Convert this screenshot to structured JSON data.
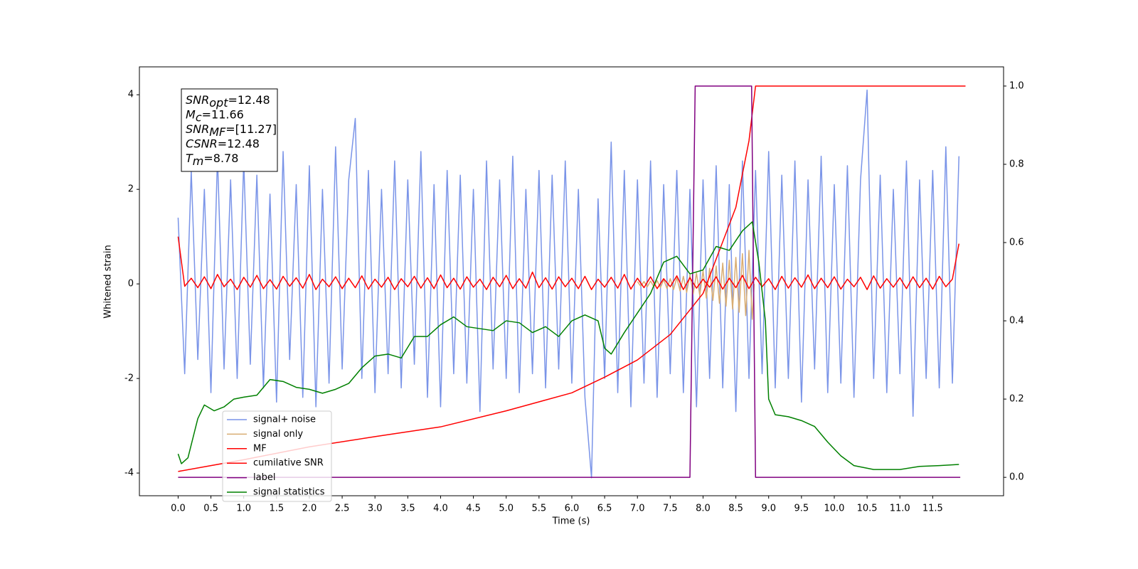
{
  "chart_data": {
    "type": "line",
    "xlabel": "Time (s)",
    "ylabel": "Whitened strain",
    "xlim": [
      -0.59,
      12.58
    ],
    "ylim": [
      -4.48,
      4.59
    ],
    "y2lim": [
      -0.047,
      1.049
    ],
    "xticks": [
      {
        "value": 0,
        "label": "0.0"
      },
      0.5,
      {
        "value": 1,
        "label": "1.0"
      },
      1.5,
      {
        "value": 2,
        "label": "2.0"
      },
      2.5,
      {
        "value": 3,
        "label": "3.0"
      },
      3.5,
      {
        "value": 4,
        "label": "4.0"
      },
      4.5,
      {
        "value": 5,
        "label": "5.0"
      },
      5.5,
      {
        "value": 6,
        "label": "6.0"
      },
      6.5,
      {
        "value": 7,
        "label": "7.0"
      },
      7.5,
      {
        "value": 8,
        "label": "8.0"
      },
      8.5,
      {
        "value": 9,
        "label": "9.0"
      },
      9.5,
      {
        "value": 10,
        "label": "10.0"
      },
      10.5,
      {
        "value": 11,
        "label": "11.0"
      },
      11.5
    ],
    "yticks": [
      -4,
      -2,
      0,
      2,
      4
    ],
    "y2ticks": [
      {
        "value": 0,
        "label": "0.0"
      },
      0.2,
      0.4,
      0.6,
      0.8,
      {
        "value": 1,
        "label": "1.0"
      }
    ],
    "legend": "lower left",
    "annotation": [
      {
        "text": "SNR",
        "sub": "opt",
        "rest": "=12.48"
      },
      {
        "text": "M",
        "sub": "c",
        "rest": "=11.66"
      },
      {
        "text": "SNR",
        "sub": "MF",
        "rest": "=[11.27]"
      },
      {
        "text": "CSNR",
        "rest": "=12.48"
      },
      {
        "text": "T",
        "sub": "m",
        "rest": "=8.78"
      }
    ],
    "x": [
      0,
      0.1,
      0.2,
      0.3,
      0.4,
      0.5,
      0.6,
      0.7,
      0.8,
      0.9,
      1,
      1.1,
      1.2,
      1.3,
      1.4,
      1.5,
      1.6,
      1.7,
      1.8,
      1.9,
      2,
      2.1,
      2.2,
      2.3,
      2.4,
      2.5,
      2.6,
      2.7,
      2.8,
      2.9,
      3,
      3.1,
      3.2,
      3.3,
      3.4,
      3.5,
      3.6,
      3.7,
      3.8,
      3.9,
      4,
      4.1,
      4.2,
      4.3,
      4.4,
      4.5,
      4.6,
      4.7,
      4.8,
      4.9,
      5,
      5.1,
      5.2,
      5.3,
      5.4,
      5.5,
      5.6,
      5.7,
      5.8,
      5.9,
      6,
      6.1,
      6.2,
      6.3,
      6.4,
      6.5,
      6.6,
      6.7,
      6.8,
      6.9,
      7,
      7.1,
      7.2,
      7.3,
      7.4,
      7.5,
      7.6,
      7.7,
      7.8,
      7.9,
      8,
      8.1,
      8.2,
      8.3,
      8.4,
      8.5,
      8.6,
      8.7,
      8.8,
      8.9,
      9,
      9.1,
      9.2,
      9.3,
      9.4,
      9.5,
      9.6,
      9.7,
      9.8,
      9.9,
      10,
      10.1,
      10.2,
      10.3,
      10.4,
      10.5,
      10.6,
      10.7,
      10.8,
      10.9,
      11,
      11.1,
      11.2,
      11.3,
      11.4,
      11.5,
      11.6,
      11.7,
      11.8,
      11.9
    ],
    "series": [
      {
        "name": "signal+ noise",
        "color": "#7a94e8",
        "values": [
          1.4,
          -1.9,
          2.4,
          -1.6,
          2.0,
          -2.3,
          2.7,
          -1.8,
          2.2,
          -2.0,
          2.6,
          -1.7,
          2.3,
          -2.2,
          1.9,
          -2.5,
          2.8,
          -1.6,
          2.1,
          -2.4,
          2.5,
          -2.6,
          2.0,
          -2.1,
          2.9,
          -1.8,
          2.2,
          3.5,
          -2.0,
          2.4,
          -2.3,
          2.0,
          -1.9,
          2.6,
          -2.2,
          2.2,
          -1.7,
          2.8,
          -2.4,
          2.1,
          -2.6,
          2.4,
          -1.9,
          2.3,
          -2.1,
          2.0,
          -2.7,
          2.6,
          -1.8,
          2.2,
          -2.0,
          2.7,
          -2.3,
          2.0,
          -1.9,
          2.4,
          -2.2,
          2.3,
          -1.8,
          2.6,
          -2.1,
          2.0,
          -2.4,
          -4.1,
          1.8,
          -2.0,
          3.0,
          -2.3,
          2.4,
          -2.6,
          2.2,
          -2.1,
          2.6,
          -2.4,
          2.1,
          -1.9,
          2.4,
          -2.3,
          2.0,
          -2.6,
          2.2,
          -2.0,
          2.5,
          -2.2,
          2.1,
          -2.7,
          2.6,
          -2.0,
          2.4,
          -1.9,
          2.8,
          -2.2,
          2.3,
          -2.0,
          2.6,
          -2.5,
          2.2,
          -1.8,
          2.7,
          -2.3,
          2.1,
          -2.1,
          2.5,
          -2.4,
          2.2,
          4.1,
          -2.0,
          2.3,
          -2.3,
          2.0,
          -1.9,
          2.6,
          -2.8,
          2.2,
          -2.0,
          2.4,
          -2.2,
          2.9,
          -2.1,
          2.7
        ]
      },
      {
        "name": "signal only",
        "color": "#d9ad72",
        "x": [
          7.0,
          7.05,
          7.1,
          7.15,
          7.2,
          7.25,
          7.3,
          7.35,
          7.4,
          7.45,
          7.5,
          7.55,
          7.6,
          7.65,
          7.7,
          7.75,
          7.8,
          7.85,
          7.9,
          7.95,
          8.0,
          8.05,
          8.1,
          8.15,
          8.2,
          8.25,
          8.3,
          8.35,
          8.4,
          8.45,
          8.5,
          8.55,
          8.6,
          8.65,
          8.7,
          8.75,
          8.78
        ],
        "values": [
          0.05,
          -0.05,
          0.05,
          -0.06,
          0.06,
          -0.06,
          0.07,
          -0.08,
          0.09,
          -0.1,
          0.11,
          -0.12,
          0.13,
          -0.15,
          0.16,
          -0.18,
          0.19,
          -0.21,
          0.23,
          -0.25,
          0.28,
          -0.3,
          0.33,
          -0.35,
          0.38,
          -0.41,
          0.44,
          -0.47,
          0.5,
          -0.53,
          0.56,
          -0.6,
          0.64,
          -0.67,
          0.71,
          -0.75,
          0
        ]
      },
      {
        "name": "MF",
        "color": "#ff0000",
        "values": [
          1.0,
          -0.05,
          0.12,
          -0.08,
          0.15,
          -0.1,
          0.2,
          -0.06,
          0.1,
          -0.12,
          0.14,
          -0.07,
          0.18,
          -0.1,
          0.09,
          -0.11,
          0.16,
          -0.05,
          0.13,
          -0.09,
          0.2,
          -0.12,
          0.1,
          -0.06,
          0.15,
          -0.1,
          0.12,
          -0.08,
          0.17,
          -0.11,
          0.1,
          -0.07,
          0.14,
          -0.12,
          0.11,
          -0.06,
          0.16,
          -0.09,
          0.13,
          -0.1,
          0.19,
          -0.08,
          0.12,
          -0.11,
          0.15,
          -0.07,
          0.1,
          -0.12,
          0.14,
          -0.06,
          0.18,
          -0.1,
          0.11,
          -0.09,
          0.25,
          -0.08,
          0.13,
          -0.11,
          0.15,
          -0.06,
          0.12,
          -0.1,
          0.16,
          -0.12,
          0.1,
          -0.07,
          0.14,
          -0.09,
          0.2,
          -0.11,
          0.12,
          -0.08,
          0.15,
          -0.1,
          0.11,
          -0.06,
          0.17,
          -0.12,
          0.13,
          -0.09,
          0.1,
          -0.07,
          0.15,
          -0.11,
          0.12,
          -0.08,
          0.18,
          -0.1,
          0.14,
          -0.06,
          0.11,
          -0.12,
          0.16,
          -0.09,
          0.13,
          -0.07,
          0.19,
          -0.1,
          0.12,
          -0.08,
          0.15,
          -0.11,
          0.1,
          -0.06,
          0.14,
          -0.12,
          0.17,
          -0.09,
          0.11,
          -0.07,
          0.13,
          -0.1,
          0.15,
          -0.08,
          0.12,
          -0.11,
          0.16,
          -0.06,
          0.1,
          0.85
        ]
      },
      {
        "name": "cumilative SNR",
        "color": "#ff0000",
        "axis": "y2",
        "x": [
          0,
          0.5,
          1,
          2,
          3,
          4,
          5,
          6,
          6.5,
          7,
          7.5,
          8,
          8.5,
          8.7,
          8.8,
          12
        ],
        "values": [
          0.015,
          0.03,
          0.045,
          0.078,
          0.104,
          0.129,
          0.17,
          0.216,
          0.256,
          0.3,
          0.365,
          0.47,
          0.69,
          0.86,
          1.0,
          1.0
        ]
      },
      {
        "name": "label",
        "color": "#800080",
        "axis": "y2",
        "x": [
          0,
          7.8,
          7.88,
          8.74,
          8.8,
          11.92
        ],
        "values": [
          0,
          0,
          1,
          1,
          0,
          0
        ]
      },
      {
        "name": "signal statistics",
        "color": "#008000",
        "axis": "y2",
        "x": [
          0,
          0.05,
          0.15,
          0.3,
          0.4,
          0.55,
          0.7,
          0.85,
          1.0,
          1.2,
          1.4,
          1.6,
          1.8,
          2.0,
          2.2,
          2.4,
          2.6,
          2.8,
          3.0,
          3.2,
          3.4,
          3.6,
          3.8,
          4.0,
          4.2,
          4.4,
          4.6,
          4.8,
          5.0,
          5.2,
          5.4,
          5.6,
          5.8,
          6.0,
          6.2,
          6.4,
          6.5,
          6.6,
          6.8,
          7.0,
          7.2,
          7.4,
          7.6,
          7.8,
          8.0,
          8.2,
          8.4,
          8.6,
          8.75,
          8.85,
          8.95,
          9.0,
          9.1,
          9.3,
          9.5,
          9.7,
          9.9,
          10.1,
          10.3,
          10.6,
          11.0,
          11.3,
          11.6,
          11.9
        ],
        "values": [
          0.06,
          0.035,
          0.05,
          0.15,
          0.185,
          0.17,
          0.18,
          0.2,
          0.205,
          0.21,
          0.25,
          0.245,
          0.23,
          0.225,
          0.215,
          0.225,
          0.24,
          0.28,
          0.31,
          0.315,
          0.305,
          0.36,
          0.36,
          0.39,
          0.41,
          0.385,
          0.38,
          0.375,
          0.4,
          0.395,
          0.37,
          0.385,
          0.36,
          0.4,
          0.415,
          0.4,
          0.33,
          0.315,
          0.37,
          0.42,
          0.47,
          0.55,
          0.565,
          0.52,
          0.53,
          0.59,
          0.58,
          0.63,
          0.653,
          0.55,
          0.4,
          0.2,
          0.16,
          0.155,
          0.145,
          0.13,
          0.09,
          0.055,
          0.03,
          0.02,
          0.02,
          0.028,
          0.03,
          0.033
        ]
      }
    ]
  }
}
